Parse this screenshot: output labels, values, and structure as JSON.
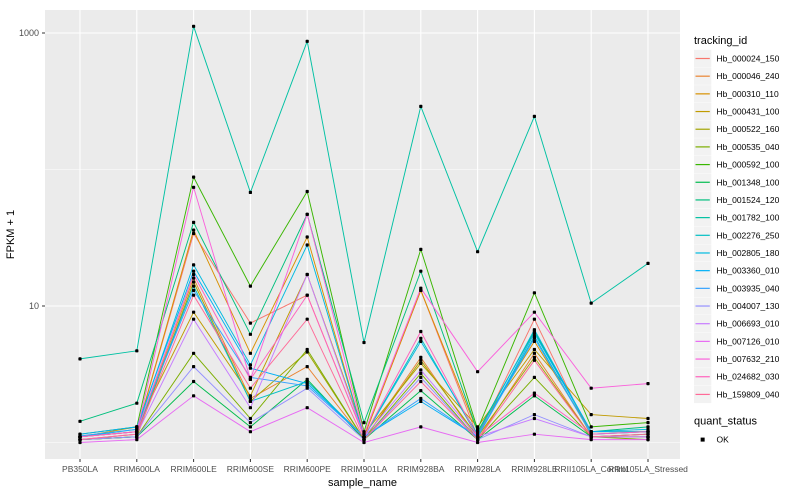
{
  "chart_data": {
    "type": "line",
    "title": "",
    "xlabel": "sample_name",
    "ylabel": "FPKM + 1",
    "y_scale": "log10",
    "y_major_ticks": [
      10,
      1000
    ],
    "y_tick_labels": [
      "10",
      "1000"
    ],
    "y_minor_gridlines": [
      1,
      100
    ],
    "ylim": [
      0.82,
      1450
    ],
    "grid": true,
    "legend_position": "right",
    "legend_title": "tracking_id",
    "point_legend": {
      "title": "quant_status",
      "items": [
        {
          "label": "OK",
          "marker": "black-point"
        }
      ]
    },
    "categories": [
      "PB350LA",
      "RRIM600LA",
      "RRIM600LE",
      "RRIM600SE",
      "RRIM600PE",
      "RRIM901LA",
      "RRIM928BA",
      "RRIM928LA",
      "RRIM928LE",
      "RRII105LA_Control",
      "RRII105LA_Stressed"
    ],
    "series": [
      {
        "name": "Hb_000024_150",
        "color": "#F8766D",
        "values": [
          1.1,
          1.2,
          34,
          7.5,
          12,
          1.1,
          13,
          1.1,
          8.0,
          1.1,
          1.15
        ]
      },
      {
        "name": "Hb_000046_240",
        "color": "#EA8331",
        "values": [
          1.05,
          1.15,
          16,
          2.1,
          3.6,
          1.05,
          4.2,
          1.05,
          4.5,
          1.1,
          1.1
        ]
      },
      {
        "name": "Hb_000310_110",
        "color": "#D89000",
        "values": [
          1.1,
          1.2,
          36,
          4.5,
          32,
          1.1,
          13,
          1.2,
          5.5,
          1.2,
          1.2
        ]
      },
      {
        "name": "Hb_000431_100",
        "color": "#C09B00",
        "values": [
          1.1,
          1.3,
          9.0,
          2.2,
          17,
          1.15,
          3.8,
          1.3,
          4.8,
          1.6,
          1.5
        ]
      },
      {
        "name": "Hb_000522_160",
        "color": "#A3A500",
        "values": [
          1.05,
          1.1,
          15,
          2.0,
          4.6,
          1.05,
          4.0,
          1.1,
          4.2,
          1.1,
          1.1
        ]
      },
      {
        "name": "Hb_000535_040",
        "color": "#7CAE00",
        "values": [
          1.05,
          1.1,
          4.5,
          1.5,
          4.8,
          1.05,
          3.2,
          1.05,
          3.0,
          1.1,
          1.05
        ]
      },
      {
        "name": "Hb_000592_100",
        "color": "#39B600",
        "values": [
          1.15,
          1.3,
          88,
          14,
          69,
          1.2,
          26,
          1.25,
          12.5,
          1.3,
          1.4
        ]
      },
      {
        "name": "Hb_001348_100",
        "color": "#00BB4E",
        "values": [
          1.05,
          1.1,
          2.8,
          1.3,
          2.9,
          1.05,
          2.4,
          1.05,
          2.2,
          1.1,
          1.15
        ]
      },
      {
        "name": "Hb_001524_120",
        "color": "#00BF7D",
        "values": [
          1.43,
          1.94,
          41,
          6.2,
          47,
          1.4,
          18,
          1.2,
          6.5,
          1.2,
          1.3
        ]
      },
      {
        "name": "Hb_001782_100",
        "color": "#00C1A3",
        "values": [
          4.1,
          4.7,
          1120,
          68,
          870,
          5.4,
          290,
          25,
          245,
          10.5,
          20.5
        ]
      },
      {
        "name": "Hb_002276_250",
        "color": "#00BFC4",
        "values": [
          1.1,
          1.2,
          14,
          2.0,
          2.8,
          1.1,
          5.8,
          1.1,
          6.0,
          1.15,
          1.2
        ]
      },
      {
        "name": "Hb_002805_180",
        "color": "#00BAE0",
        "values": [
          1.1,
          1.25,
          20,
          3.7,
          28,
          1.1,
          5.5,
          1.15,
          6.7,
          1.2,
          1.25
        ]
      },
      {
        "name": "Hb_003360_010",
        "color": "#00B0F6",
        "values": [
          1.15,
          1.3,
          18,
          3.5,
          2.7,
          1.1,
          2.0,
          1.1,
          6.3,
          1.2,
          1.2
        ]
      },
      {
        "name": "Hb_003935_040",
        "color": "#35A2FF",
        "values": [
          1.12,
          1.25,
          13,
          3.0,
          2.6,
          1.1,
          2.1,
          1.1,
          5.8,
          1.15,
          1.2
        ]
      },
      {
        "name": "Hb_004007_130",
        "color": "#9590FF",
        "values": [
          1.05,
          1.1,
          3.6,
          1.4,
          2.5,
          1.05,
          3.0,
          1.05,
          1.6,
          1.1,
          1.1
        ]
      },
      {
        "name": "Hb_006693_010",
        "color": "#C77CFF",
        "values": [
          1.05,
          1.15,
          8.0,
          1.8,
          17,
          1.1,
          3.4,
          1.1,
          1.5,
          1.1,
          1.1
        ]
      },
      {
        "name": "Hb_007126_010",
        "color": "#E76BF3",
        "values": [
          1.0,
          1.05,
          2.2,
          1.2,
          1.8,
          1.0,
          1.3,
          1.0,
          1.15,
          1.05,
          1.05
        ]
      },
      {
        "name": "Hb_007632_210",
        "color": "#FA62DB",
        "values": [
          1.1,
          1.2,
          74,
          2.9,
          47,
          1.15,
          13.5,
          3.3,
          9.0,
          2.5,
          2.7
        ]
      },
      {
        "name": "Hb_024682_030",
        "color": "#FF62BC",
        "values": [
          1.1,
          1.2,
          17,
          2.9,
          12,
          1.1,
          6.5,
          1.1,
          2.3,
          1.15,
          1.2
        ]
      },
      {
        "name": "Hb_159809_040",
        "color": "#FF6A98",
        "values": [
          1.05,
          1.15,
          12,
          2.5,
          8.0,
          1.05,
          2.8,
          1.05,
          4.0,
          1.1,
          1.15
        ]
      }
    ]
  },
  "style": {
    "panel_bg": "#EBEBEB",
    "grid_color": "#FFFFFF",
    "legend_key_bg": "#F2F2F2",
    "tick_label_color": "#4D4D4D",
    "axis_title_color": "#000000",
    "tick_mark_color": "#333333",
    "point_color": "#000000"
  }
}
